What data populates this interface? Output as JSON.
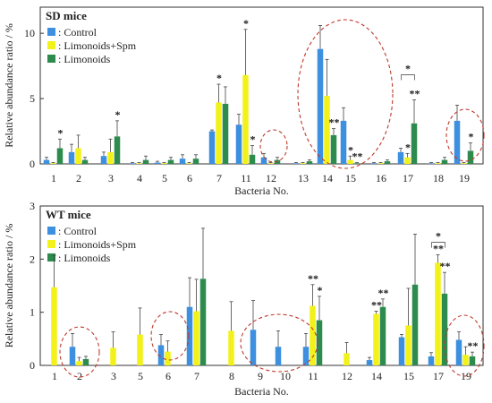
{
  "colors": {
    "control": "#3d8fe0",
    "limonoids_spm": "#f2f21a",
    "limonoids": "#2e8b4e",
    "circle": "#c0392b"
  },
  "legend": [
    "Control",
    "Limonoids+Spm",
    "Limonoids"
  ],
  "chart_data": [
    {
      "type": "bar",
      "title": "SD mice",
      "xlabel": "Bacteria No.",
      "ylabel": "Relative abundance ratio / %",
      "ylim": [
        0,
        12
      ],
      "yticks": [
        0,
        5,
        10
      ],
      "grid": false,
      "legend_position": "top-left",
      "categories": [
        "1",
        "2",
        "3",
        "4",
        "5",
        "6",
        "7",
        "11",
        "12",
        "13",
        "14",
        "15",
        "16",
        "17",
        "18",
        "19"
      ],
      "series": [
        {
          "name": "Control",
          "values": [
            0.3,
            0.9,
            0.6,
            0.05,
            0.1,
            0.4,
            2.5,
            3.0,
            0.5,
            0.05,
            8.8,
            3.3,
            0.05,
            0.9,
            0.05,
            3.3
          ],
          "errors": [
            0.2,
            0.6,
            0.3,
            0.05,
            0.1,
            0.3,
            0.1,
            0.8,
            0.3,
            0.05,
            1.8,
            1.0,
            0.05,
            0.3,
            0.05,
            1.2
          ]
        },
        {
          "name": "Limonoids+Spm",
          "values": [
            0.05,
            1.2,
            0.9,
            0.05,
            0.05,
            0.05,
            4.7,
            6.8,
            0.05,
            0.05,
            5.2,
            0.3,
            0.05,
            0.5,
            0.05,
            0.05
          ],
          "errors": [
            0.05,
            1.0,
            1.0,
            0.05,
            0.05,
            0.05,
            1.4,
            3.5,
            0.05,
            0.05,
            2.8,
            0.3,
            0.05,
            0.3,
            0.05,
            0.05
          ]
        },
        {
          "name": "Limonoids",
          "values": [
            1.2,
            0.3,
            2.1,
            0.3,
            0.3,
            0.4,
            4.6,
            0.7,
            0.3,
            0.2,
            2.2,
            0.05,
            0.2,
            3.1,
            0.3,
            1.0
          ],
          "errors": [
            0.7,
            0.2,
            1.2,
            0.3,
            0.2,
            0.3,
            1.3,
            0.7,
            0.2,
            0.1,
            0.5,
            0.05,
            0.1,
            1.8,
            0.2,
            0.6
          ]
        }
      ],
      "annotations": [
        {
          "category": "1",
          "series": "Limonoids",
          "text": "*"
        },
        {
          "category": "3",
          "series": "Limonoids",
          "text": "*"
        },
        {
          "category": "7",
          "series": "Limonoids+Spm",
          "text": "*"
        },
        {
          "category": "11",
          "series": "Limonoids+Spm",
          "text": "*"
        },
        {
          "category": "11",
          "series": "Limonoids",
          "text": "*"
        },
        {
          "category": "14",
          "series": "Limonoids",
          "text": "**"
        },
        {
          "category": "15",
          "series": "Limonoids+Spm",
          "text": "*"
        },
        {
          "category": "15",
          "series": "Limonoids",
          "text": "**"
        },
        {
          "category": "17",
          "series": "Limonoids+Spm",
          "text": "*"
        },
        {
          "category": "17",
          "series": "Limonoids",
          "text": "**"
        },
        {
          "category": "17",
          "series": "bracket",
          "text": "*"
        },
        {
          "category": "19",
          "series": "Limonoids",
          "text": "*"
        }
      ],
      "circled": [
        "12",
        "14",
        "15",
        "19"
      ]
    },
    {
      "type": "bar",
      "title": "WT mice",
      "xlabel": "Bacteria No.",
      "ylabel": "Relative abundance ratio / %",
      "ylim": [
        0,
        3
      ],
      "yticks": [
        0,
        1,
        2,
        3
      ],
      "grid": false,
      "legend_position": "top-left",
      "categories": [
        "1",
        "2",
        "3",
        "5",
        "6",
        "7",
        "8",
        "9",
        "10",
        "11",
        "12",
        "14",
        "15",
        "17",
        "19"
      ],
      "series": [
        {
          "name": "Control",
          "values": [
            0,
            0.35,
            0,
            0,
            0.38,
            1.1,
            0,
            0.67,
            0.35,
            0.35,
            0,
            0.1,
            0.53,
            0.17,
            0.48
          ],
          "errors": [
            0,
            0.25,
            0,
            0,
            0.2,
            0.55,
            0,
            0.55,
            0.3,
            0.25,
            0,
            0.05,
            0.05,
            0.07,
            0.15
          ]
        },
        {
          "name": "Limonoids+Spm",
          "values": [
            1.47,
            0.08,
            0.33,
            0.58,
            0.26,
            1.02,
            0.65,
            0,
            0,
            1.12,
            0.23,
            0.97,
            0.75,
            1.93,
            0.2
          ],
          "errors": [
            0.6,
            0.07,
            0.3,
            0.5,
            0.2,
            0.6,
            0.55,
            0,
            0,
            0.4,
            0.2,
            0.05,
            0.7,
            0.15,
            0.15
          ]
        },
        {
          "name": "Limonoids",
          "values": [
            0,
            0.12,
            0,
            0,
            0,
            1.63,
            0,
            0,
            0,
            0.85,
            0,
            1.1,
            1.52,
            1.35,
            0.17
          ],
          "errors": [
            0,
            0.05,
            0,
            0,
            0,
            0.95,
            0,
            0,
            0,
            0.45,
            0,
            0.15,
            0.95,
            0.4,
            0.08
          ]
        }
      ],
      "annotations": [
        {
          "category": "11",
          "series": "Limonoids+Spm",
          "text": "**"
        },
        {
          "category": "11",
          "series": "Limonoids",
          "text": "*"
        },
        {
          "category": "14",
          "series": "Limonoids+Spm",
          "text": "**"
        },
        {
          "category": "14",
          "series": "Limonoids",
          "text": "**"
        },
        {
          "category": "17",
          "series": "Limonoids+Spm",
          "text": "**"
        },
        {
          "category": "17",
          "series": "Limonoids",
          "text": "**"
        },
        {
          "category": "17",
          "series": "bracket",
          "text": "*"
        },
        {
          "category": "19",
          "series": "Limonoids",
          "text": "**"
        }
      ],
      "circled": [
        "2",
        "6",
        "9",
        "10",
        "19"
      ]
    }
  ]
}
